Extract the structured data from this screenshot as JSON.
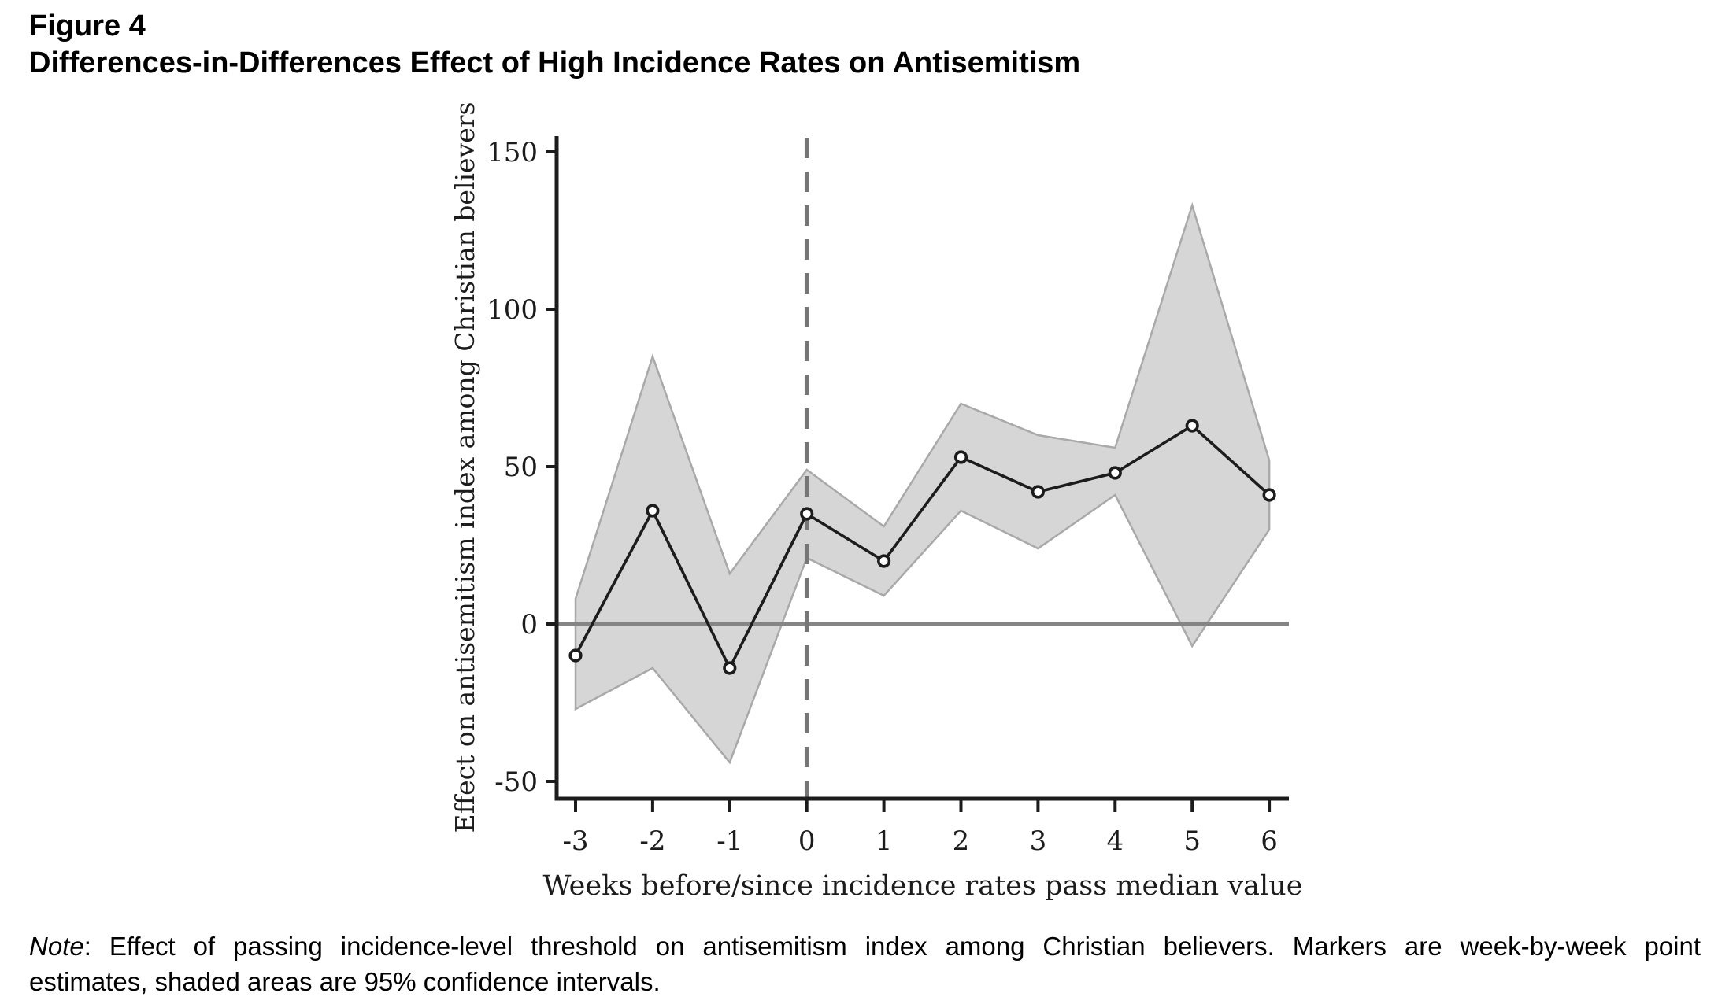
{
  "figure": {
    "label": "Figure 4",
    "title": "Differences-in-Differences Effect of High Incidence Rates on Antisemitism"
  },
  "note": {
    "prefix": "Note",
    "line1_rest": ": Effect of passing incidence-level threshold on antisemitism index among Christian believers. Markers are week-by-week point",
    "line2": "estimates, shaded areas are 95% confidence intervals."
  },
  "chart_data": {
    "type": "line",
    "title": "Differences-in-Differences Effect of High Incidence Rates on Antisemitism",
    "xlabel": "Weeks before/since incidence rates pass median value",
    "ylabel": "Effect on antisemitism index among Christian believers",
    "x": [
      -3,
      -2,
      -1,
      0,
      1,
      2,
      3,
      4,
      5,
      6
    ],
    "series": [
      {
        "name": "point estimate",
        "values": [
          -10,
          36,
          -14,
          35,
          20,
          53,
          42,
          48,
          63,
          41
        ]
      },
      {
        "name": "95% CI lower",
        "values": [
          -27,
          -14,
          -44,
          21,
          9,
          36,
          24,
          41,
          -7,
          30
        ]
      },
      {
        "name": "95% CI upper",
        "values": [
          8,
          85,
          16,
          49,
          31,
          70,
          60,
          56,
          133,
          52
        ]
      }
    ],
    "ci_level": "95%",
    "x_tick_labels": [
      "-3",
      "-2",
      "-1",
      "0",
      "1",
      "2",
      "3",
      "4",
      "5",
      "6"
    ],
    "y_tick_values": [
      150,
      100,
      50,
      0,
      -50
    ],
    "y_tick_labels": [
      "150",
      "100",
      "50",
      "0",
      "-50"
    ],
    "xlim": [
      -3,
      6
    ],
    "ylim": [
      -56,
      158
    ],
    "grid": "off",
    "legend": "none",
    "reference_lines": {
      "vertical_dashed_at_x": 0,
      "horizontal_solid_at_y": 0
    },
    "colors": {
      "band_fill": "#d6d6d6",
      "band_border": "#a9a9a9",
      "line": "#1c1c1c",
      "marker_fill": "#ffffff",
      "marker_stroke": "#1c1c1c",
      "zero_line": "#858585",
      "dashed_line": "#767676",
      "axis": "#1c1c1c",
      "text": "#1c1c1c"
    }
  }
}
